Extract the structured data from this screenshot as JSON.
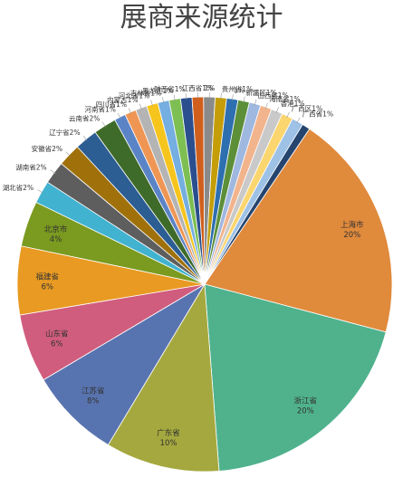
{
  "chart_data": {
    "type": "pie",
    "title": "展商来源统计",
    "slices": [
      {
        "label": "上海市",
        "value": 20,
        "display": "20%",
        "color": "#e08a3c"
      },
      {
        "label": "浙江省",
        "value": 20,
        "display": "20%",
        "color": "#4fb28d"
      },
      {
        "label": "广东省",
        "value": 10,
        "display": "10%",
        "color": "#a5a83e"
      },
      {
        "label": "江苏省",
        "value": 8,
        "display": "8%",
        "color": "#5874b0"
      },
      {
        "label": "山东省",
        "value": 6,
        "display": "6%",
        "color": "#d05d7e"
      },
      {
        "label": "福建省",
        "value": 6,
        "display": "6%",
        "color": "#e99a22"
      },
      {
        "label": "北京市",
        "value": 4,
        "display": "4%",
        "color": "#7a9a20"
      },
      {
        "label": "湖北省",
        "value": 2,
        "display": "2%",
        "color": "#41b2d0"
      },
      {
        "label": "湖南省",
        "value": 2,
        "display": "2%",
        "color": "#5e5e5e"
      },
      {
        "label": "安徽省",
        "value": 2,
        "display": "2%",
        "color": "#a0710b"
      },
      {
        "label": "辽宁省",
        "value": 2,
        "display": "2%",
        "color": "#2c5d93"
      },
      {
        "label": "云南省",
        "value": 2,
        "display": "2%",
        "color": "#3f6b2a"
      },
      {
        "label": "河南省",
        "value": 1,
        "display": "1%",
        "color": "#5b84c7"
      },
      {
        "label": "四川省",
        "value": 1,
        "display": "1%",
        "color": "#ef9655"
      },
      {
        "label": "内蒙古",
        "value": 1,
        "display": "1%",
        "color": "#b4b4b4"
      },
      {
        "label": "河北省",
        "value": 1,
        "display": "1%",
        "color": "#f6c51d"
      },
      {
        "label": "吉林省",
        "value": 1,
        "display": "1%",
        "color": "#75aee0"
      },
      {
        "label": "黑龙江",
        "value": 1,
        "display": "1%",
        "color": "#7dbf52"
      },
      {
        "label": "陕西省",
        "value": 1,
        "display": "1%",
        "color": "#2a4e8e"
      },
      {
        "label": "江西省",
        "value": 1,
        "display": "1%",
        "color": "#d05f1d"
      },
      {
        "label": "",
        "value": 1,
        "display": "1%",
        "color": "#8a8a8a"
      },
      {
        "label": "贵州省",
        "value": 1,
        "display": "1%",
        "color": "#c49d08"
      },
      {
        "label": "",
        "value": 1,
        "display": "1%",
        "color": "#2e6fb0"
      },
      {
        "label": "新疆区",
        "value": 1,
        "display": "1%",
        "color": "#5c8f38"
      },
      {
        "label": "山西省",
        "value": 1,
        "display": "1%",
        "color": "#9fb8e0"
      },
      {
        "label": "海南省",
        "value": 1,
        "display": "1%",
        "color": "#f2b48c"
      },
      {
        "label": "香港",
        "value": 1,
        "display": "1%",
        "color": "#c9c9c9"
      },
      {
        "label": "广西区",
        "value": 1,
        "display": "1%",
        "color": "#fbd66e"
      },
      {
        "label": "广西省",
        "value": 1,
        "display": "1%",
        "color": "#9ec1e6"
      },
      {
        "label": "",
        "value": 0.7,
        "display": "",
        "color": "#26456e"
      }
    ]
  }
}
